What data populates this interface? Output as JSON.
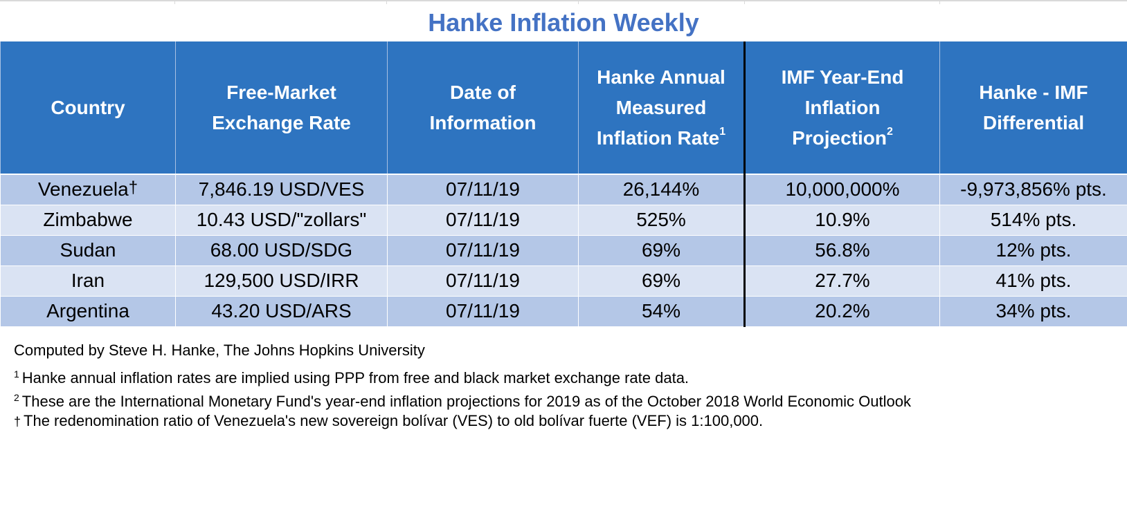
{
  "title": "Hanke Inflation Weekly",
  "headers": {
    "country": "Country",
    "exchange_rate": [
      "Free-Market",
      "Exchange Rate"
    ],
    "date": [
      "Date of",
      "Information"
    ],
    "hanke_rate": [
      "Hanke Annual",
      "Measured",
      "Inflation Rate"
    ],
    "hanke_rate_note": "1",
    "imf_projection": [
      "IMF Year-End",
      "Inflation",
      "Projection"
    ],
    "imf_projection_note": "2",
    "differential": [
      "Hanke - IMF",
      "Differential"
    ]
  },
  "rows": [
    {
      "country": "Venezuela",
      "mark": "†",
      "rate": "7,846.19 USD/VES",
      "date": "07/11/19",
      "hanke": "26,144%",
      "imf": "10,000,000%",
      "diff": "-9,973,856% pts."
    },
    {
      "country": "Zimbabwe",
      "mark": "",
      "rate": "10.43 USD/\"zollars\"",
      "date": "07/11/19",
      "hanke": "525%",
      "imf": "10.9%",
      "diff": "514% pts."
    },
    {
      "country": "Sudan",
      "mark": "",
      "rate": "68.00 USD/SDG",
      "date": "07/11/19",
      "hanke": "69%",
      "imf": "56.8%",
      "diff": "12% pts."
    },
    {
      "country": "Iran",
      "mark": "",
      "rate": "129,500 USD/IRR",
      "date": "07/11/19",
      "hanke": "69%",
      "imf": "27.7%",
      "diff": "41% pts."
    },
    {
      "country": "Argentina",
      "mark": "",
      "rate": "43.20 USD/ARS",
      "date": "07/11/19",
      "hanke": "54%",
      "imf": "20.2%",
      "diff": "34% pts."
    }
  ],
  "notes": {
    "computed_by": "Computed by Steve H. Hanke, The Johns Hopkins University",
    "note1_mark": "1",
    "note1": "Hanke annual inflation rates are implied using PPP from free and black market exchange rate data.",
    "note2_mark": "2",
    "note2": "These are the International Monetary Fund's year-end inflation projections for 2019 as of the October 2018 World Economic Outlook",
    "note3_mark": "†",
    "note3": "The redenomination ratio of Venezuela's new sovereign bolívar (VES) to old bolívar fuerte (VEF) is 1:100,000."
  },
  "colors": {
    "title": "#4472c4",
    "header_bg": "#2e74c0",
    "row_dark": "#b4c7e7",
    "row_light": "#dae3f3"
  }
}
